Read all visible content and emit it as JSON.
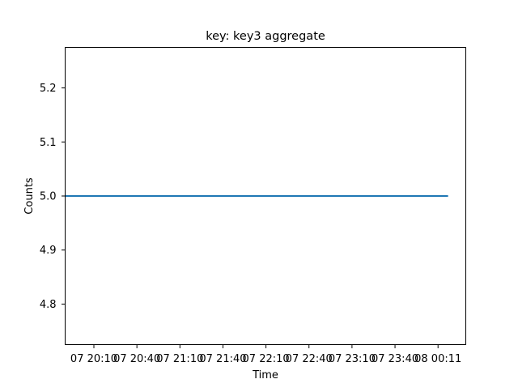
{
  "chart_data": {
    "type": "line",
    "title": "key: key3 aggregate",
    "xlabel": "Time",
    "ylabel": "Counts",
    "x_ticks": [
      "07 20:10",
      "07 20:40",
      "07 21:10",
      "07 21:40",
      "07 22:10",
      "07 22:40",
      "07 23:10",
      "07 23:40",
      "08 00:11"
    ],
    "y_ticks": [
      "4.8",
      "4.9",
      "5.0",
      "5.1",
      "5.2"
    ],
    "ylim": [
      4.725,
      5.275
    ],
    "grid": false,
    "series": [
      {
        "color": "#1f77b4",
        "x": [
          "07 19:50",
          "08 00:17"
        ],
        "y": [
          5.0,
          5.0
        ]
      }
    ]
  }
}
